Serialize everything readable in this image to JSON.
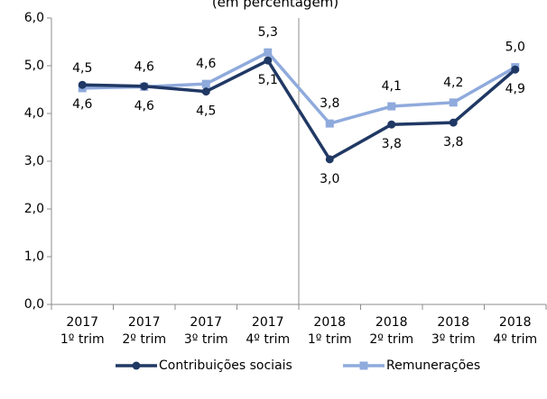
{
  "chart_data": {
    "type": "line",
    "subtitle": "(em percentagem)",
    "categories": [
      [
        "2017",
        "1º trim"
      ],
      [
        "2017",
        "2º trim"
      ],
      [
        "2017",
        "3º trim"
      ],
      [
        "2017",
        "4º trim"
      ],
      [
        "2018",
        "1º trim"
      ],
      [
        "2018",
        "2º trim"
      ],
      [
        "2018",
        "3º trim"
      ],
      [
        "2018",
        "4º trim"
      ]
    ],
    "series": [
      {
        "name": "Contribuições sociais",
        "color": "#203864",
        "marker": "circle",
        "values": [
          4.6,
          4.57,
          4.46,
          5.11,
          3.04,
          3.77,
          3.81,
          4.92
        ],
        "value_labels": [
          "4,6",
          "4,6",
          "4,5",
          "5,1",
          "3,0",
          "3,8",
          "3,8",
          "4,9"
        ],
        "label_position": "below"
      },
      {
        "name": "Remunerações",
        "color": "#8faadc",
        "marker": "square",
        "values": [
          4.53,
          4.56,
          4.62,
          5.28,
          3.79,
          4.15,
          4.23,
          4.97
        ],
        "value_labels": [
          "4,5",
          "4,6",
          "4,6",
          "5,3",
          "3,8",
          "4,1",
          "4,2",
          "5,0"
        ],
        "label_position": "above"
      }
    ],
    "ylim": [
      0,
      6
    ],
    "yticks": [
      {
        "value": 0,
        "label": "0,0"
      },
      {
        "value": 1,
        "label": "1,0"
      },
      {
        "value": 2,
        "label": "2,0"
      },
      {
        "value": 3,
        "label": "3,0"
      },
      {
        "value": 4,
        "label": "4,0"
      },
      {
        "value": 5,
        "label": "5,0"
      },
      {
        "value": 6,
        "label": "6,0"
      }
    ],
    "grid": false,
    "legend": "bottom"
  }
}
